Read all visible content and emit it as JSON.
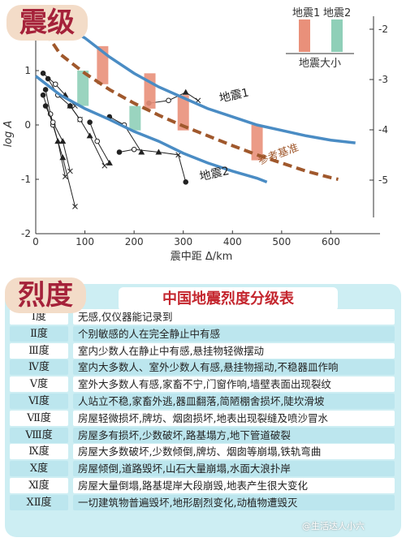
{
  "badges": {
    "chart": "震级",
    "table": "烈度"
  },
  "chart_data": {
    "type": "line",
    "xlabel": "震中距 Δ/km",
    "ylabel": "log A",
    "xlim": [
      0,
      700
    ],
    "ylim": [
      -2,
      2
    ],
    "x_ticks": [
      "0",
      "100",
      "200",
      "300",
      "400",
      "500",
      "600"
    ],
    "y_ticks_left": [
      "1",
      "0",
      "-1",
      "-2"
    ],
    "y_ticks_right": [
      "-2",
      "-3",
      "-4",
      "-5"
    ],
    "curves": [
      {
        "label": "地震1",
        "points": [
          [
            50,
            1.85
          ],
          [
            100,
            1.6
          ],
          [
            150,
            1.25
          ],
          [
            200,
            0.95
          ],
          [
            250,
            0.7
          ],
          [
            300,
            0.5
          ],
          [
            350,
            0.3
          ],
          [
            400,
            0.15
          ],
          [
            450,
            0.0
          ],
          [
            500,
            -0.1
          ],
          [
            550,
            -0.2
          ],
          [
            600,
            -0.28
          ],
          [
            650,
            -0.33
          ]
        ]
      },
      {
        "label": "参考基准",
        "points": [
          [
            20,
            1.7
          ],
          [
            50,
            1.3
          ],
          [
            100,
            0.95
          ],
          [
            150,
            0.65
          ],
          [
            200,
            0.4
          ],
          [
            250,
            0.18
          ],
          [
            300,
            -0.02
          ],
          [
            350,
            -0.2
          ],
          [
            400,
            -0.38
          ],
          [
            450,
            -0.55
          ],
          [
            500,
            -0.7
          ],
          [
            550,
            -0.85
          ],
          [
            600,
            -0.97
          ],
          [
            615,
            -1.0
          ]
        ]
      },
      {
        "label": "地震2",
        "points": [
          [
            0,
            0.9
          ],
          [
            50,
            0.55
          ],
          [
            100,
            0.3
          ],
          [
            150,
            0.1
          ],
          [
            200,
            -0.12
          ],
          [
            250,
            -0.3
          ],
          [
            300,
            -0.52
          ],
          [
            350,
            -0.7
          ],
          [
            400,
            -0.85
          ],
          [
            450,
            -0.98
          ],
          [
            470,
            -1.05
          ]
        ]
      }
    ],
    "bars": [
      {
        "series": "地震1",
        "x": 136,
        "y_top": 1.45,
        "y_bottom": 0.75
      },
      {
        "series": "地震2",
        "x": 96,
        "y_top": 1.0,
        "y_bottom": 0.35
      },
      {
        "series": "地震1",
        "x": 232,
        "y_top": 0.95,
        "y_bottom": 0.3
      },
      {
        "series": "地震2",
        "x": 202,
        "y_top": 0.35,
        "y_bottom": -0.1
      },
      {
        "series": "地震1",
        "x": 300,
        "y_top": 0.55,
        "y_bottom": -0.1
      },
      {
        "series": "地震1",
        "x": 450,
        "y_top": 0.0,
        "y_bottom": -0.65
      }
    ],
    "station_traces": [
      [
        [
          15,
          0.95
        ],
        [
          40,
          0.75
        ],
        [
          60,
          0.55
        ],
        [
          80,
          0.35
        ]
      ],
      [
        [
          25,
          0.85
        ],
        [
          45,
          0.55
        ],
        [
          70,
          0.35
        ],
        [
          90,
          0.1
        ]
      ],
      [
        [
          20,
          0.65
        ],
        [
          30,
          0.2
        ],
        [
          45,
          -0.3
        ],
        [
          60,
          -0.95
        ]
      ],
      [
        [
          15,
          0.55
        ],
        [
          35,
          0.0
        ],
        [
          55,
          -0.6
        ],
        [
          80,
          -1.5
        ]
      ],
      [
        [
          20,
          0.35
        ],
        [
          35,
          0.05
        ],
        [
          55,
          -0.3
        ],
        [
          70,
          -0.85
        ]
      ],
      [
        [
          70,
          0.35
        ],
        [
          90,
          0.1
        ],
        [
          110,
          -0.2
        ],
        [
          140,
          -0.75
        ]
      ],
      [
        [
          110,
          0.05
        ],
        [
          125,
          -0.3
        ],
        [
          150,
          -0.7
        ]
      ],
      [
        [
          150,
          0.15
        ],
        [
          180,
          0.0
        ],
        [
          215,
          -0.5
        ]
      ],
      [
        [
          170,
          -0.5
        ],
        [
          200,
          -0.45
        ],
        [
          250,
          -0.5
        ],
        [
          290,
          -0.55
        ],
        [
          305,
          -1.05
        ]
      ],
      [
        [
          230,
          0.4
        ],
        [
          270,
          0.45
        ],
        [
          305,
          0.6
        ],
        [
          330,
          0.45
        ]
      ]
    ],
    "legend": {
      "items": [
        "地震1",
        "地震2"
      ],
      "title": "地震大小",
      "colors": [
        "#e9907a",
        "#8fcfb8"
      ],
      "position": "top-right"
    },
    "colors": {
      "curve": "#4a8cc4",
      "reference": "#a0582c",
      "quake1": "#e9907a",
      "quake2": "#8fcfb8"
    }
  },
  "table": {
    "title": "中国地震烈度分级表",
    "rows": [
      {
        "degree": "Ⅰ度",
        "desc": "无感,仅仪器能记录到"
      },
      {
        "degree": "Ⅱ度",
        "desc": "个别敏感的人在完全静止中有感"
      },
      {
        "degree": "Ⅲ度",
        "desc": "室内少数人在静止中有感,悬挂物轻微摆动"
      },
      {
        "degree": "Ⅳ度",
        "desc": "室内大多数人、室外少数人有感,悬挂物摇动,不稳器皿作响"
      },
      {
        "degree": "Ⅴ度",
        "desc": "室外大多数人有感,家畜不宁,门窗作响,墙壁表面出现裂纹"
      },
      {
        "degree": "Ⅵ度",
        "desc": "人站立不稳,家畜外逃,器皿翻落,简陋棚舍损坏,陡坎滑坡"
      },
      {
        "degree": "Ⅶ度",
        "desc": "房屋轻微损坏,牌坊、烟囱损坏,地表出现裂缝及喷沙冒水"
      },
      {
        "degree": "Ⅷ度",
        "desc": "房屋多有损坏,少数破坏,路基塌方,地下管道破裂"
      },
      {
        "degree": "Ⅸ度",
        "desc": "房屋大多数破坏,少数倾倒,牌坊、烟囱等崩塌,铁轨弯曲"
      },
      {
        "degree": "Ⅹ度",
        "desc": "房屋倾倒,道路毁坏,山石大量崩塌,水面大浪扑岸"
      },
      {
        "degree": "Ⅺ度",
        "desc": "房屋大量倒塌,路基堤岸大段崩毁,地表产生很大变化"
      },
      {
        "degree": "ⅩⅡ度",
        "desc": "一切建筑物普遍毁坏,地形剧烈变化,动植物遭毁灭"
      }
    ]
  },
  "watermark": "@生活达人小六"
}
